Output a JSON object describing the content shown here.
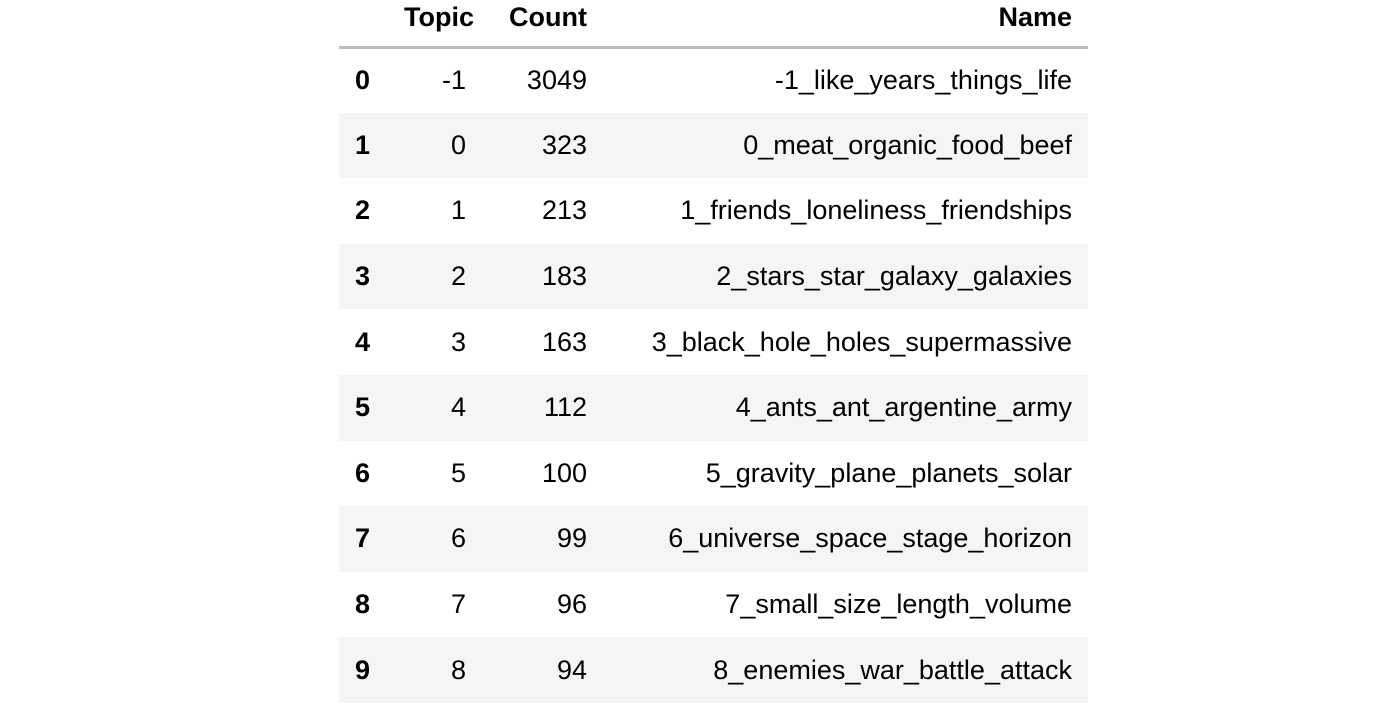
{
  "table": {
    "columns": [
      "",
      "Topic",
      "Count",
      "Name"
    ],
    "rows": [
      {
        "index": "0",
        "topic": "-1",
        "count": "3049",
        "name": "-1_like_years_things_life"
      },
      {
        "index": "1",
        "topic": "0",
        "count": "323",
        "name": "0_meat_organic_food_beef"
      },
      {
        "index": "2",
        "topic": "1",
        "count": "213",
        "name": "1_friends_loneliness_friendships"
      },
      {
        "index": "3",
        "topic": "2",
        "count": "183",
        "name": "2_stars_star_galaxy_galaxies"
      },
      {
        "index": "4",
        "topic": "3",
        "count": "163",
        "name": "3_black_hole_holes_supermassive"
      },
      {
        "index": "5",
        "topic": "4",
        "count": "112",
        "name": "4_ants_ant_argentine_army"
      },
      {
        "index": "6",
        "topic": "5",
        "count": "100",
        "name": "5_gravity_plane_planets_solar"
      },
      {
        "index": "7",
        "topic": "6",
        "count": "99",
        "name": "6_universe_space_stage_horizon"
      },
      {
        "index": "8",
        "topic": "7",
        "count": "96",
        "name": "7_small_size_length_volume"
      },
      {
        "index": "9",
        "topic": "8",
        "count": "94",
        "name": "8_enemies_war_battle_attack"
      }
    ]
  },
  "colors": {
    "stripe": "#f5f5f5",
    "header_rule": "#bdbdbd",
    "text": "#000000"
  }
}
